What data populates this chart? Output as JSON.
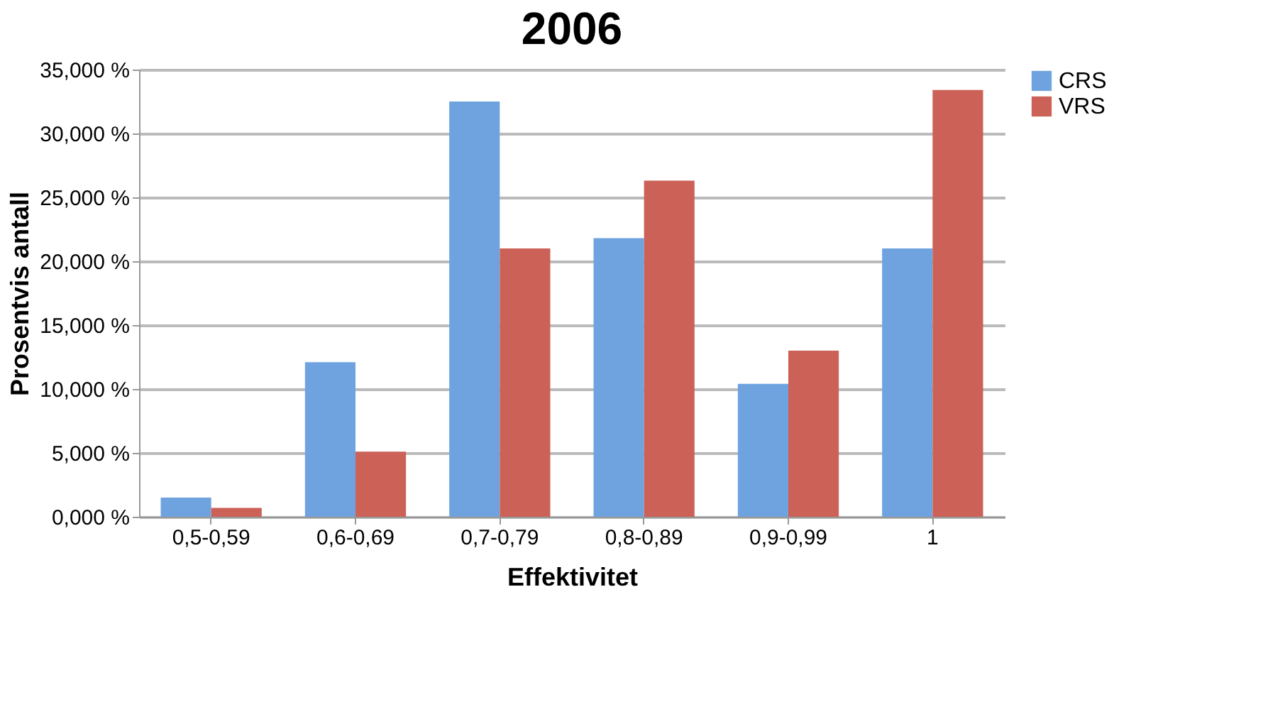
{
  "chart_data": {
    "type": "bar",
    "title": "2006",
    "xlabel": "Effektivitet",
    "ylabel": "Prosentvis antall",
    "categories": [
      "0,5-0,59",
      "0,6-0,69",
      "0,7-0,79",
      "0,8-0,89",
      "0,9-0,99",
      "1"
    ],
    "series": [
      {
        "name": "CRS",
        "color": "#6fa3e0",
        "values": [
          1.5,
          12.1,
          32.5,
          21.8,
          10.4,
          21.0
        ]
      },
      {
        "name": "VRS",
        "color": "#cc6158",
        "values": [
          0.7,
          5.1,
          21.0,
          26.3,
          13.0,
          33.4
        ]
      }
    ],
    "ylim": [
      0,
      35
    ],
    "yticks": [
      {
        "value": 0,
        "label": "0,000 %"
      },
      {
        "value": 5,
        "label": "5,000 %"
      },
      {
        "value": 10,
        "label": "10,000 %"
      },
      {
        "value": 15,
        "label": "15,000 %"
      },
      {
        "value": 20,
        "label": "20,000 %"
      },
      {
        "value": 25,
        "label": "25,000 %"
      },
      {
        "value": 30,
        "label": "30,000 %"
      },
      {
        "value": 35,
        "label": "35,000 %"
      }
    ],
    "grid": "y",
    "legend": "right"
  }
}
